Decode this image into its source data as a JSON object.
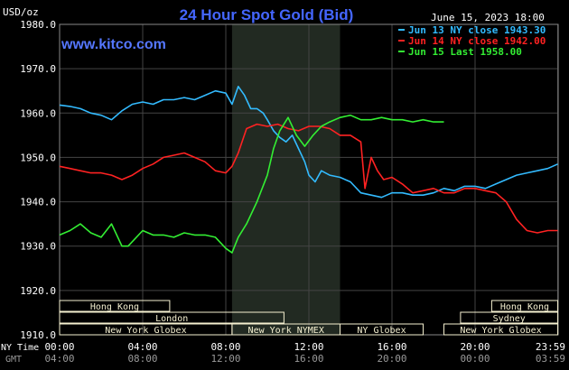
{
  "chart_data": {
    "type": "line",
    "title": "24 Hour Spot Gold (Bid)",
    "unit_label": "USD/oz",
    "date_label": "June 15, 2023 18:00",
    "watermark": "www.kitco.com",
    "ylim": [
      1910,
      1980
    ],
    "y_ticks": [
      {
        "value": 1910,
        "label": "1910.0"
      },
      {
        "value": 1920,
        "label": "1920.0"
      },
      {
        "value": 1930,
        "label": "1930.0"
      },
      {
        "value": 1940,
        "label": "1940.0"
      },
      {
        "value": 1950,
        "label": "1950.0"
      },
      {
        "value": 1960,
        "label": "1960.0"
      },
      {
        "value": 1970,
        "label": "1970.0"
      },
      {
        "value": 1980,
        "label": "1980.0"
      }
    ],
    "xlim": [
      0,
      24
    ],
    "x_time_label_ny": "NY Time",
    "x_time_label_gmt": "GMT",
    "x_ticks": [
      {
        "x": 0,
        "ny": "00:00",
        "gmt": "04:00"
      },
      {
        "x": 4,
        "ny": "04:00",
        "gmt": "08:00"
      },
      {
        "x": 8,
        "ny": "08:00",
        "gmt": "12:00"
      },
      {
        "x": 12,
        "ny": "12:00",
        "gmt": "16:00"
      },
      {
        "x": 16,
        "ny": "16:00",
        "gmt": "20:00"
      },
      {
        "x": 20,
        "ny": "20:00",
        "gmt": "00:00"
      },
      {
        "x": 23.98,
        "ny": "23:59",
        "gmt": "03:59"
      }
    ],
    "shaded_region": [
      8.3,
      13.5
    ],
    "series": [
      {
        "name": "Jun 13 NY close 1943.30",
        "color": "#33bbff",
        "points": [
          [
            0,
            1961.8
          ],
          [
            0.5,
            1961.5
          ],
          [
            1,
            1961
          ],
          [
            1.5,
            1960
          ],
          [
            2,
            1959.5
          ],
          [
            2.5,
            1958.5
          ],
          [
            3,
            1960.5
          ],
          [
            3.5,
            1962
          ],
          [
            4,
            1962.5
          ],
          [
            4.5,
            1962
          ],
          [
            5,
            1963
          ],
          [
            5.5,
            1963
          ],
          [
            6,
            1963.5
          ],
          [
            6.5,
            1963
          ],
          [
            7,
            1964
          ],
          [
            7.5,
            1965
          ],
          [
            8,
            1964.5
          ],
          [
            8.3,
            1962
          ],
          [
            8.6,
            1966
          ],
          [
            8.9,
            1964
          ],
          [
            9.2,
            1961
          ],
          [
            9.5,
            1961
          ],
          [
            9.8,
            1960
          ],
          [
            10,
            1958.5
          ],
          [
            10.3,
            1956
          ],
          [
            10.6,
            1954.5
          ],
          [
            10.9,
            1953.5
          ],
          [
            11.2,
            1955
          ],
          [
            11.5,
            1952
          ],
          [
            11.8,
            1949
          ],
          [
            12,
            1946
          ],
          [
            12.3,
            1944.5
          ],
          [
            12.6,
            1947
          ],
          [
            13,
            1946
          ],
          [
            13.5,
            1945.5
          ],
          [
            14,
            1944.5
          ],
          [
            14.5,
            1942
          ],
          [
            15,
            1941.5
          ],
          [
            15.5,
            1941
          ],
          [
            16,
            1942
          ],
          [
            16.5,
            1942
          ],
          [
            17,
            1941.5
          ],
          [
            17.5,
            1941.5
          ],
          [
            18,
            1942
          ],
          [
            18.5,
            1943
          ],
          [
            19,
            1942.5
          ],
          [
            19.5,
            1943.5
          ],
          [
            20,
            1943.5
          ],
          [
            20.5,
            1943
          ],
          [
            21,
            1944
          ],
          [
            21.5,
            1945
          ],
          [
            22,
            1946
          ],
          [
            22.5,
            1946.5
          ],
          [
            23,
            1947
          ],
          [
            23.5,
            1947.5
          ],
          [
            23.98,
            1948.5
          ]
        ]
      },
      {
        "name": "Jun 14 NY close 1942.00",
        "color": "#ff2222",
        "points": [
          [
            0,
            1948
          ],
          [
            0.5,
            1947.5
          ],
          [
            1,
            1947
          ],
          [
            1.5,
            1946.5
          ],
          [
            2,
            1946.5
          ],
          [
            2.5,
            1946
          ],
          [
            3,
            1945
          ],
          [
            3.5,
            1946
          ],
          [
            4,
            1947.5
          ],
          [
            4.5,
            1948.5
          ],
          [
            5,
            1950
          ],
          [
            5.5,
            1950.5
          ],
          [
            6,
            1951
          ],
          [
            6.5,
            1950
          ],
          [
            7,
            1949
          ],
          [
            7.5,
            1947
          ],
          [
            8,
            1946.5
          ],
          [
            8.3,
            1948
          ],
          [
            8.6,
            1951
          ],
          [
            9,
            1956.5
          ],
          [
            9.5,
            1957.5
          ],
          [
            10,
            1957
          ],
          [
            10.5,
            1957.5
          ],
          [
            11,
            1956.5
          ],
          [
            11.5,
            1956
          ],
          [
            12,
            1957
          ],
          [
            12.5,
            1957
          ],
          [
            13,
            1956.5
          ],
          [
            13.5,
            1955
          ],
          [
            14,
            1955
          ],
          [
            14.5,
            1953.5
          ],
          [
            14.7,
            1943
          ],
          [
            15,
            1950
          ],
          [
            15.3,
            1947
          ],
          [
            15.6,
            1945
          ],
          [
            16,
            1945.5
          ],
          [
            16.5,
            1944
          ],
          [
            17,
            1942
          ],
          [
            17.5,
            1942.5
          ],
          [
            18,
            1943
          ],
          [
            18.5,
            1942
          ],
          [
            19,
            1942
          ],
          [
            19.5,
            1943
          ],
          [
            20,
            1943
          ],
          [
            20.5,
            1942.5
          ],
          [
            21,
            1942
          ],
          [
            21.5,
            1940
          ],
          [
            22,
            1936
          ],
          [
            22.5,
            1933.5
          ],
          [
            23,
            1933
          ],
          [
            23.5,
            1933.5
          ],
          [
            23.98,
            1933.5
          ]
        ]
      },
      {
        "name": "Jun 15 Last 1958.00",
        "color": "#33ee33",
        "points": [
          [
            0,
            1932.5
          ],
          [
            0.5,
            1933.5
          ],
          [
            1,
            1935
          ],
          [
            1.5,
            1933
          ],
          [
            2,
            1932
          ],
          [
            2.5,
            1935
          ],
          [
            3,
            1930
          ],
          [
            3.3,
            1930
          ],
          [
            3.6,
            1931.5
          ],
          [
            4,
            1933.5
          ],
          [
            4.5,
            1932.5
          ],
          [
            5,
            1932.5
          ],
          [
            5.5,
            1932
          ],
          [
            6,
            1933
          ],
          [
            6.5,
            1932.5
          ],
          [
            7,
            1932.5
          ],
          [
            7.5,
            1932
          ],
          [
            8,
            1929.5
          ],
          [
            8.3,
            1928.5
          ],
          [
            8.6,
            1932
          ],
          [
            9,
            1935
          ],
          [
            9.5,
            1940
          ],
          [
            10,
            1946
          ],
          [
            10.3,
            1952
          ],
          [
            10.6,
            1956
          ],
          [
            11,
            1959
          ],
          [
            11.4,
            1955
          ],
          [
            11.8,
            1952.5
          ],
          [
            12.2,
            1955
          ],
          [
            12.6,
            1957
          ],
          [
            13,
            1958
          ],
          [
            13.5,
            1959
          ],
          [
            14,
            1959.5
          ],
          [
            14.5,
            1958.5
          ],
          [
            15,
            1958.5
          ],
          [
            15.5,
            1959
          ],
          [
            16,
            1958.5
          ],
          [
            16.5,
            1958.5
          ],
          [
            17,
            1958
          ],
          [
            17.5,
            1958.5
          ],
          [
            18,
            1958
          ],
          [
            18.5,
            1958
          ]
        ]
      }
    ],
    "market_bars": [
      {
        "label": "Hong Kong",
        "start": 0,
        "end": 5.3,
        "row": 0
      },
      {
        "label": "London",
        "start": 0,
        "end": 10.8,
        "row": 1
      },
      {
        "label": "New York Globex",
        "start": 0,
        "end": 8.3,
        "row": 2
      },
      {
        "label": "New York NYMEX",
        "start": 8.3,
        "end": 13.5,
        "row": 2
      },
      {
        "label": "NY Globex",
        "start": 13.5,
        "end": 17.5,
        "row": 2
      },
      {
        "label": "Hong Kong",
        "start": 20.8,
        "end": 23.98,
        "row": 0
      },
      {
        "label": "Sydney",
        "start": 19.3,
        "end": 23.98,
        "row": 1
      },
      {
        "label": "New York Globex",
        "start": 18.5,
        "end": 23.98,
        "row": 2
      }
    ],
    "colors": {
      "background": "#000000",
      "grid": "#444444",
      "shade": "#222a22",
      "title": "#4466ff",
      "watermark": "#5577ff",
      "text": "#ffffff",
      "bar_fill": "#f5f0d0",
      "bar_text": "#000000"
    }
  }
}
